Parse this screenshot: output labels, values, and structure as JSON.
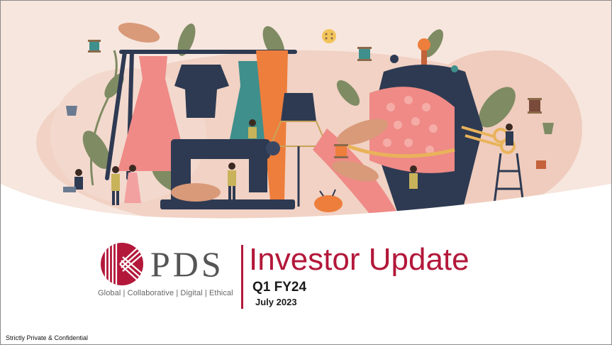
{
  "brand": {
    "name": "PDS",
    "tagline": "Global | Collaborative | Digital | Ethical",
    "color": "#b3183a"
  },
  "slide": {
    "title": "Investor Update",
    "quarter": "Q1 FY24",
    "date": "July 2023",
    "footer": "Strictly Private & Confidential"
  },
  "illustration": {
    "subject": "fashion design studio illustration",
    "palette": {
      "background": "#f7e6de",
      "pink": "#ef8a86",
      "navy": "#2e3a52",
      "teal": "#3f8f8c",
      "orange": "#ee7e3c",
      "leaf": "#7f8b63"
    }
  }
}
